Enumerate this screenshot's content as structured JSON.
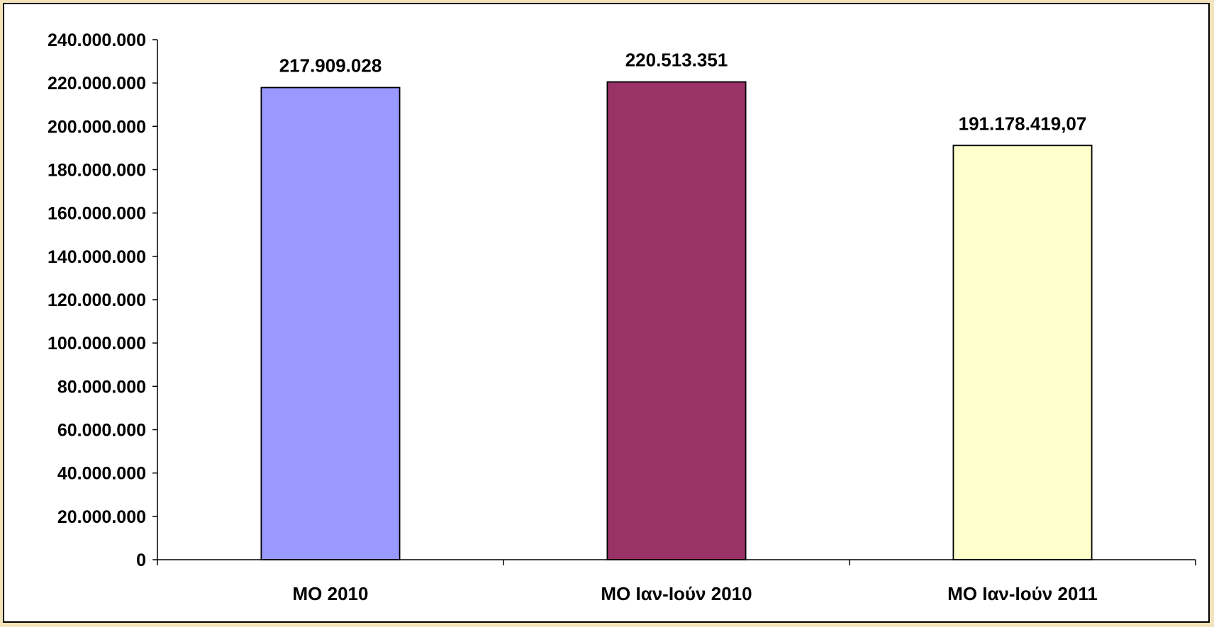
{
  "chart_data": {
    "type": "bar",
    "title": "",
    "xlabel": "",
    "ylabel": "",
    "categories": [
      "ΜΟ 2010",
      "ΜΟ Ιαν-Ιούν 2010",
      "ΜΟ Ιαν-Ιούν 2011"
    ],
    "values": [
      217909028,
      220513351,
      191178419.07
    ],
    "value_labels": [
      "217.909.028",
      "220.513.351",
      "191.178.419,07"
    ],
    "ylim": [
      0,
      240000000
    ],
    "ytick_step": 20000000,
    "ytick_labels": [
      "0",
      "20.000.000",
      "40.000.000",
      "60.000.000",
      "80.000.000",
      "100.000.000",
      "120.000.000",
      "140.000.000",
      "160.000.000",
      "180.000.000",
      "200.000.000",
      "220.000.000",
      "240.000.000"
    ],
    "bar_colors": [
      "#9999ff",
      "#993366",
      "#ffffcc"
    ],
    "grid": false,
    "legend": "none"
  }
}
